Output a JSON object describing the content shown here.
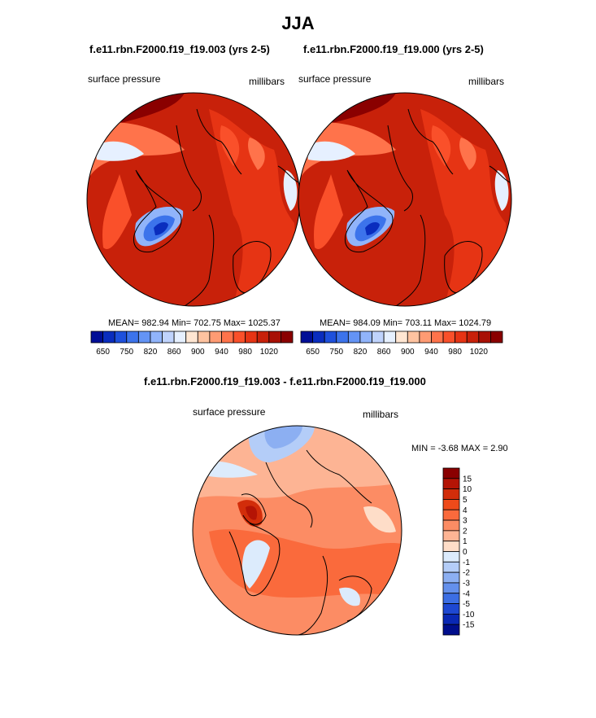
{
  "figure": {
    "title": "JJA",
    "left_run": "f.e11.rbn.F2000.f19_f19.003 (yrs 2-5)",
    "right_run": "f.e11.rbn.F2000.f19_f19.000 (yrs 2-5)",
    "diff_title": "f.e11.rbn.F2000.f19_f19.003 - f.e11.rbn.F2000.f19_f19.000"
  },
  "chart_data": [
    {
      "type": "heatmap",
      "projection": "polar stereographic (north)",
      "title": "f.e11.rbn.F2000.f19_f19.003 (yrs 2-5)",
      "left_label": "surface pressure",
      "units": "millibars",
      "stats": {
        "mean": 982.94,
        "min": 702.75,
        "max": 1025.37
      },
      "stats_text": "MEAN= 982.94  Min= 702.75  Max= 1025.37",
      "colorbar": {
        "orientation": "horizontal",
        "levels": [
          650,
          700,
          750,
          800,
          820,
          840,
          860,
          880,
          900,
          920,
          940,
          960,
          980,
          1000,
          1020
        ],
        "tick_labels": [
          "650",
          "750",
          "820",
          "860",
          "900",
          "940",
          "980",
          "1020"
        ],
        "colors": [
          "#000e96",
          "#0a2dbe",
          "#1e50dc",
          "#3c73eb",
          "#6494f5",
          "#91b4fa",
          "#bfd3fc",
          "#e6f0ff",
          "#ffe6d2",
          "#ffc3a0",
          "#ff9b73",
          "#ff734b",
          "#fa502a",
          "#e63414",
          "#c8210a",
          "#a81005",
          "#8a0000"
        ]
      }
    },
    {
      "type": "heatmap",
      "projection": "polar stereographic (north)",
      "title": "f.e11.rbn.F2000.f19_f19.000 (yrs 2-5)",
      "left_label": "surface pressure",
      "units": "millibars",
      "stats": {
        "mean": 984.09,
        "min": 703.11,
        "max": 1024.79
      },
      "stats_text": "MEAN= 984.09  Min= 703.11  Max= 1024.79",
      "colorbar": {
        "orientation": "horizontal",
        "levels": [
          650,
          700,
          750,
          800,
          820,
          840,
          860,
          880,
          900,
          920,
          940,
          960,
          980,
          1000,
          1020
        ],
        "tick_labels": [
          "650",
          "750",
          "820",
          "860",
          "900",
          "940",
          "980",
          "1020"
        ],
        "colors": [
          "#000e96",
          "#0a2dbe",
          "#1e50dc",
          "#3c73eb",
          "#6494f5",
          "#91b4fa",
          "#bfd3fc",
          "#e6f0ff",
          "#ffe6d2",
          "#ffc3a0",
          "#ff9b73",
          "#ff734b",
          "#fa502a",
          "#e63414",
          "#c8210a",
          "#a81005",
          "#8a0000"
        ]
      }
    },
    {
      "type": "heatmap",
      "projection": "polar stereographic (north)",
      "title": "f.e11.rbn.F2000.f19_f19.003 - f.e11.rbn.F2000.f19_f19.000",
      "left_label": "surface pressure",
      "units": "millibars",
      "stats": {
        "min": -3.68,
        "max": 2.9
      },
      "stats_text": "MIN =  -3.68 MAX =   2.90",
      "colorbar": {
        "orientation": "vertical",
        "tick_labels": [
          "15",
          "10",
          "5",
          "4",
          "3",
          "2",
          "1",
          "0",
          "-1",
          "-2",
          "-3",
          "-4",
          "-5",
          "-10",
          "-15"
        ],
        "colors": [
          "#8a0000",
          "#b41405",
          "#d22d0a",
          "#ee4a1a",
          "#fa6a3c",
          "#fc8c64",
          "#fdb494",
          "#feddc8",
          "#dcebfc",
          "#b4cdf8",
          "#8caff2",
          "#6490ec",
          "#3c6ee4",
          "#1e48d2",
          "#0a28b4",
          "#000e8c"
        ]
      }
    }
  ]
}
